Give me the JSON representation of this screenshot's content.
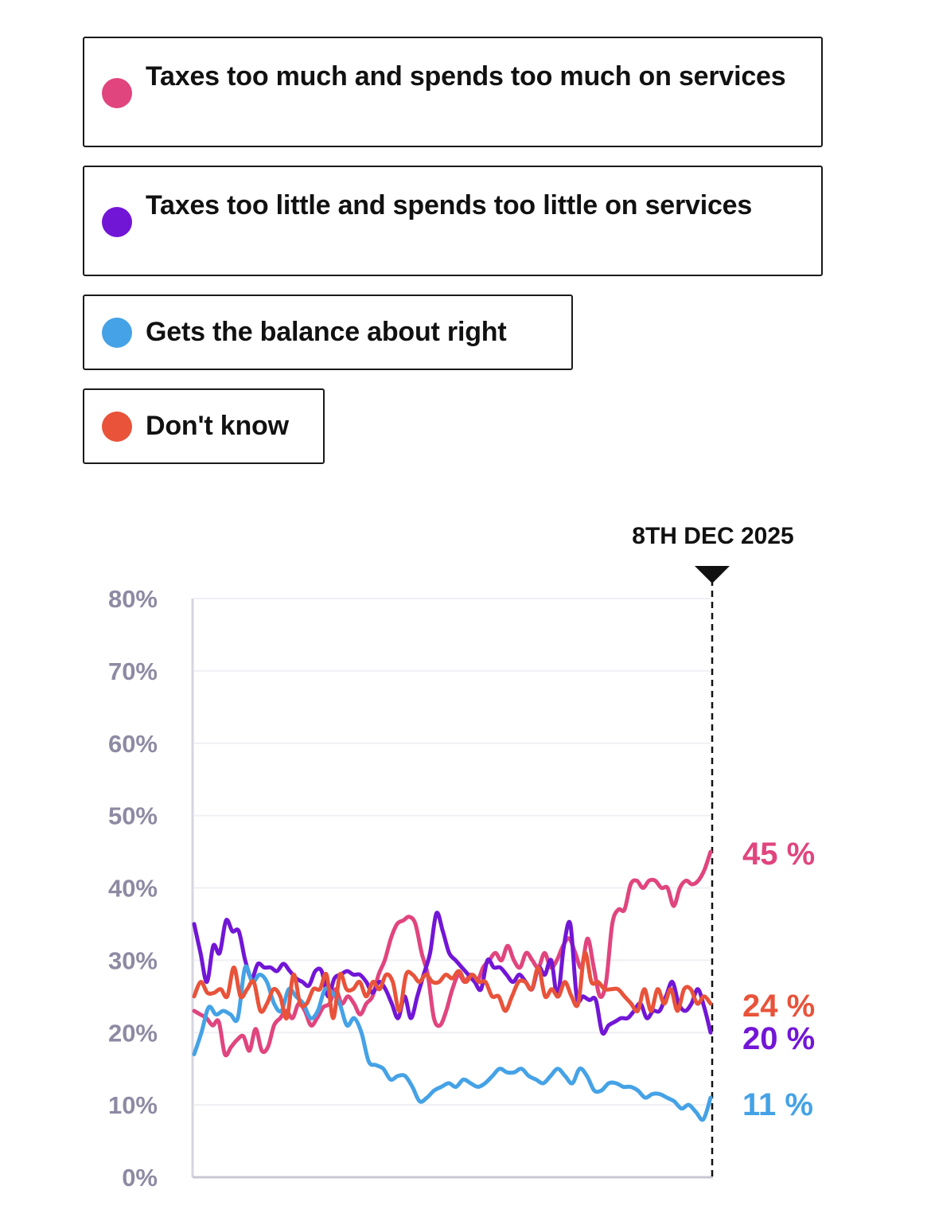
{
  "legend": [
    {
      "label": "Taxes too much and spends too much on services",
      "color": "#e0457e"
    },
    {
      "label": "Taxes too little and spends too little on services",
      "color": "#7216d6"
    },
    {
      "label": "Gets the balance about right",
      "color": "#45a2e6"
    },
    {
      "label": "Don't know",
      "color": "#e8533a"
    }
  ],
  "chart_data": {
    "type": "line",
    "title": "",
    "xlabel": "",
    "ylabel": "",
    "ylim": [
      0,
      80
    ],
    "yticks": [
      0,
      10,
      20,
      30,
      40,
      50,
      60,
      70,
      80
    ],
    "ytick_labels": [
      "0%",
      "10%",
      "20%",
      "30%",
      "40%",
      "50%",
      "60%",
      "70%",
      "80%"
    ],
    "grid": true,
    "marker": {
      "label": "8TH DEC 2025",
      "position": "end"
    },
    "series": [
      {
        "name": "Taxes too much and spends too much on services",
        "color": "#e0457e",
        "end_label": "45 %",
        "values": [
          23,
          22.5,
          22,
          21,
          21.5,
          17,
          18,
          19,
          19.5,
          17.5,
          20.5,
          17.5,
          18,
          21,
          22,
          23,
          22,
          24,
          23,
          21,
          22,
          23.5,
          24,
          26,
          24,
          25,
          24,
          22.5,
          24,
          25,
          28,
          30,
          33,
          35,
          35.5,
          36,
          35,
          31,
          28,
          22,
          21,
          23,
          26,
          28,
          27,
          28,
          27,
          29,
          30,
          31,
          30,
          32,
          30,
          29,
          31,
          30,
          29,
          31,
          29,
          30,
          32,
          33,
          31,
          29,
          33,
          29,
          25,
          27,
          35,
          37,
          37,
          40.5,
          41,
          40,
          41,
          41,
          40,
          40,
          37.5,
          40,
          41,
          40.5,
          41,
          42.5,
          45
        ],
        "last_value": 45
      },
      {
        "name": "Taxes too little and spends too little on services",
        "color": "#7216d6",
        "end_label": "20 %",
        "values": [
          35,
          31,
          27,
          32,
          31,
          35.5,
          34,
          34,
          30,
          27.5,
          29.5,
          29,
          29,
          28.5,
          29.5,
          28.5,
          27.5,
          27,
          26.5,
          28.5,
          28.5,
          25,
          27.5,
          28,
          28.5,
          28,
          28,
          27,
          25.5,
          27,
          26,
          24,
          22,
          25,
          22,
          25,
          28,
          31,
          36.5,
          34,
          31,
          30,
          29,
          28,
          27,
          26,
          30,
          29,
          29,
          28,
          27,
          28,
          27,
          26,
          29,
          28,
          30,
          25,
          32,
          35,
          25,
          25,
          24.5,
          24.5,
          20,
          21,
          21.5,
          22,
          22,
          23,
          24,
          22,
          23,
          23,
          25,
          27,
          24,
          23,
          24,
          26,
          23.5,
          20
        ],
        "last_value": 20
      },
      {
        "name": "Gets the balance about right",
        "color": "#45a2e6",
        "end_label": "11 %",
        "values": [
          17,
          20,
          23.5,
          22.5,
          23,
          22.5,
          22,
          29,
          27,
          28,
          27,
          24,
          23,
          26,
          25,
          24,
          22,
          23,
          26,
          25.5,
          24,
          21,
          22,
          20,
          16,
          15.5,
          15,
          13.5,
          14,
          14,
          12.5,
          10.5,
          11,
          12,
          12.5,
          13,
          12.5,
          13.5,
          13,
          12.5,
          13,
          14,
          15,
          14.5,
          14.5,
          15,
          14,
          13.5,
          13,
          14,
          15,
          14,
          13,
          15,
          14,
          12,
          12,
          13,
          13,
          12.5,
          12.5,
          12,
          11,
          11.5,
          11.5,
          11,
          10.5,
          9.5,
          10,
          9,
          8,
          11
        ],
        "last_value": 11
      },
      {
        "name": "Don't know",
        "color": "#e8533a",
        "end_label": "24 %",
        "values": [
          25,
          27,
          25.5,
          25.5,
          26,
          25,
          29,
          25,
          26,
          27,
          23,
          24,
          26,
          25,
          22,
          28,
          24,
          24,
          26,
          26,
          28,
          22,
          28,
          26,
          26,
          27,
          25,
          27,
          26,
          28,
          27,
          23,
          28,
          28,
          27,
          28,
          27,
          27,
          28,
          27.5,
          28.5,
          27,
          28,
          27,
          27,
          25,
          25,
          23,
          25,
          27,
          27,
          26,
          29,
          25,
          26,
          25,
          27,
          25,
          24,
          31,
          27,
          27,
          26,
          26,
          26,
          25,
          24,
          23,
          26,
          23,
          26,
          24,
          26,
          23,
          26,
          26,
          24,
          25,
          24
        ],
        "last_value": 24
      }
    ]
  }
}
